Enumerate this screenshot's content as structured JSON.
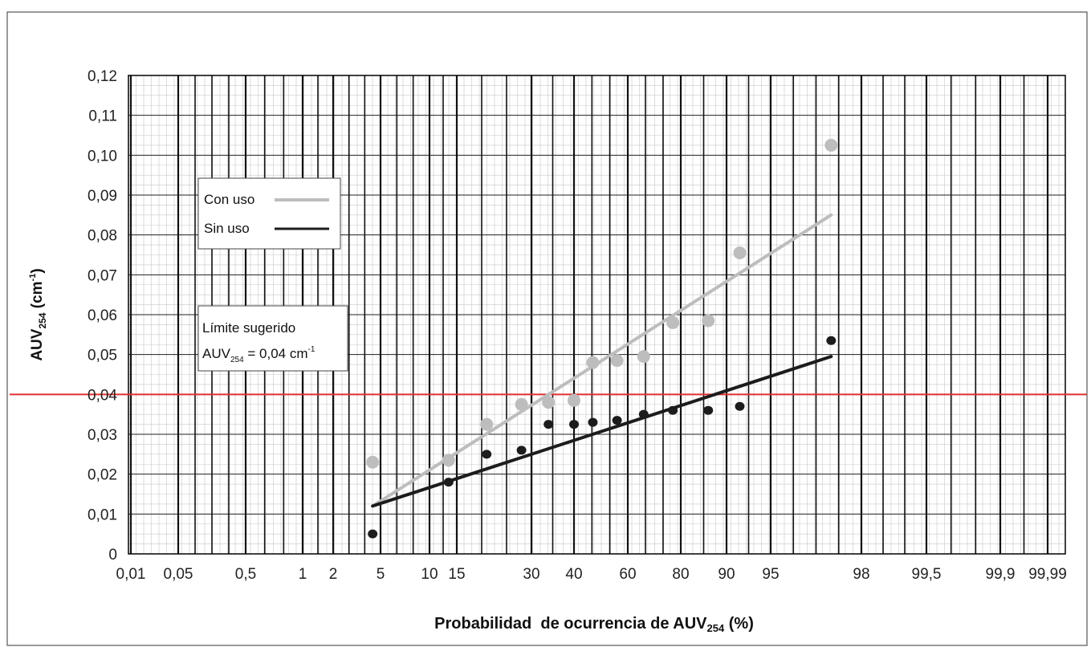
{
  "chart_data": {
    "type": "scatter",
    "x_scale": "probability",
    "xlabel": {
      "main": "Probabilidad  de ocurrencia de AUV",
      "sub": "254",
      "tail": " (%)"
    },
    "ylabel": {
      "main": "AUV",
      "sub": "254",
      "tail": " (cm",
      "sup": "-1",
      "end": ")"
    },
    "x_ticks": [
      {
        "value": 0.01,
        "label": "0,01"
      },
      {
        "value": 0.05,
        "label": "0,05"
      },
      {
        "value": 0.5,
        "label": "0,5"
      },
      {
        "value": 1,
        "label": "1"
      },
      {
        "value": 2,
        "label": "2"
      },
      {
        "value": 5,
        "label": "5"
      },
      {
        "value": 10,
        "label": "10"
      },
      {
        "value": 15,
        "label": "15"
      },
      {
        "value": 30,
        "label": "30"
      },
      {
        "value": 40,
        "label": "40"
      },
      {
        "value": 60,
        "label": "60"
      },
      {
        "value": 80,
        "label": "80"
      },
      {
        "value": 90,
        "label": "90"
      },
      {
        "value": 95,
        "label": "95"
      },
      {
        "value": 98,
        "label": "98"
      },
      {
        "value": 99.5,
        "label": "99,5"
      },
      {
        "value": 99.9,
        "label": "99,9"
      },
      {
        "value": 99.99,
        "label": "99,99"
      }
    ],
    "y_ticks": [
      {
        "value": 0,
        "label": "0"
      },
      {
        "value": 0.01,
        "label": "0,01"
      },
      {
        "value": 0.02,
        "label": "0,02"
      },
      {
        "value": 0.03,
        "label": "0,03"
      },
      {
        "value": 0.04,
        "label": "0,04"
      },
      {
        "value": 0.05,
        "label": "0,05"
      },
      {
        "value": 0.06,
        "label": "0,06"
      },
      {
        "value": 0.07,
        "label": "0,07"
      },
      {
        "value": 0.08,
        "label": "0,08"
      },
      {
        "value": 0.09,
        "label": "0,09"
      },
      {
        "value": 0.1,
        "label": "0,10"
      },
      {
        "value": 0.11,
        "label": "0,11"
      },
      {
        "value": 0.12,
        "label": "0,12"
      }
    ],
    "ylim": [
      0,
      0.12
    ],
    "grid": true,
    "series": [
      {
        "name": "Con uso",
        "color": "#bdbdbd",
        "points": [
          {
            "x": 4.5,
            "y": 0.023
          },
          {
            "x": 13.5,
            "y": 0.0235
          },
          {
            "x": 21,
            "y": 0.0325
          },
          {
            "x": 28,
            "y": 0.0375
          },
          {
            "x": 34,
            "y": 0.038
          },
          {
            "x": 40,
            "y": 0.0385
          },
          {
            "x": 47,
            "y": 0.048
          },
          {
            "x": 56,
            "y": 0.0485
          },
          {
            "x": 66,
            "y": 0.0495
          },
          {
            "x": 77,
            "y": 0.058
          },
          {
            "x": 86,
            "y": 0.0585
          },
          {
            "x": 91.5,
            "y": 0.0755
          },
          {
            "x": 97,
            "y": 0.1025
          }
        ],
        "trend": [
          {
            "x": 4.5,
            "y": 0.012
          },
          {
            "x": 97,
            "y": 0.085
          }
        ]
      },
      {
        "name": "Sin uso",
        "color": "#1c1c1c",
        "points": [
          {
            "x": 4.5,
            "y": 0.005
          },
          {
            "x": 13.5,
            "y": 0.018
          },
          {
            "x": 21,
            "y": 0.025
          },
          {
            "x": 28,
            "y": 0.026
          },
          {
            "x": 34,
            "y": 0.0325
          },
          {
            "x": 40,
            "y": 0.0325
          },
          {
            "x": 47,
            "y": 0.033
          },
          {
            "x": 56,
            "y": 0.0335
          },
          {
            "x": 66,
            "y": 0.035
          },
          {
            "x": 77,
            "y": 0.036
          },
          {
            "x": 86,
            "y": 0.036
          },
          {
            "x": 91.5,
            "y": 0.037
          },
          {
            "x": 97,
            "y": 0.0535
          }
        ],
        "trend": [
          {
            "x": 4.5,
            "y": 0.012
          },
          {
            "x": 97,
            "y": 0.0495
          }
        ]
      }
    ],
    "reference_line": {
      "y": 0.04,
      "color": "#e03030"
    },
    "legend": {
      "placement": "left",
      "items": [
        {
          "label": "Con uso",
          "color": "#bdbdbd"
        },
        {
          "label": "Sin uso",
          "color": "#1c1c1c"
        }
      ]
    },
    "annotation": {
      "line1": "Límite sugerido",
      "line2_main": "AUV",
      "line2_sub": "254",
      "line2_mid": " = 0,04 cm",
      "line2_sup": "-1"
    }
  }
}
